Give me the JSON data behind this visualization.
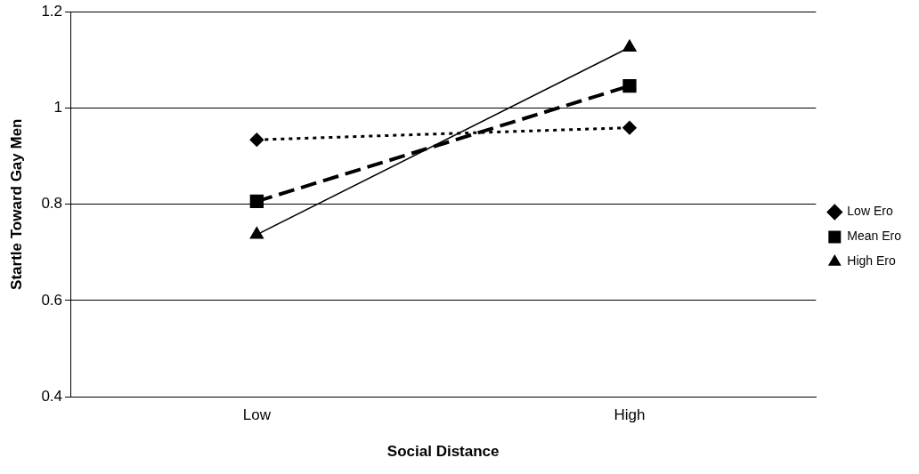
{
  "chart_data": {
    "type": "line",
    "xlabel": "Social Distance",
    "ylabel": "Startle Toward Gay Men",
    "categories": [
      "Low",
      "High"
    ],
    "series": [
      {
        "name": "Low Ero",
        "color": "#000000",
        "values": [
          0.934,
          0.959
        ],
        "marker": "diamond",
        "line_style": "dotted"
      },
      {
        "name": "Mean Ero",
        "color": "#000000",
        "values": [
          0.806,
          1.046
        ],
        "marker": "square",
        "line_style": "dashed"
      },
      {
        "name": "High Ero",
        "color": "#000000",
        "values": [
          0.737,
          1.126
        ],
        "marker": "triangle",
        "line_style": "solid"
      }
    ],
    "ylim": [
      0.4,
      1.2
    ],
    "yticks": [
      0.4,
      0.6,
      0.8,
      1,
      1.2
    ],
    "grid": "y",
    "legend": "right"
  }
}
